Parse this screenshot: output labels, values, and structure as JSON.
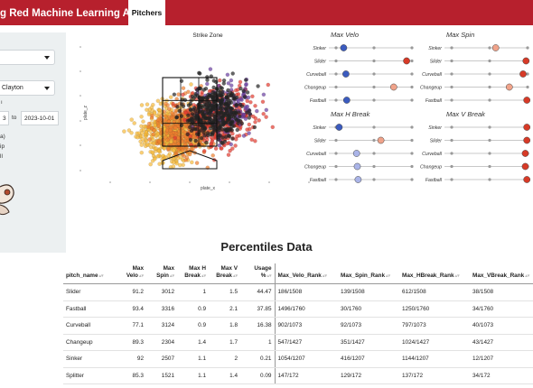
{
  "header": {
    "title": "g Red Machine Learning App",
    "tab": "Pitchers",
    "bar_color": "#b7202d"
  },
  "sidebar": {
    "pitcher_select_value": "Clayton",
    "date_start": "3",
    "date_to": "to",
    "date_end": "2023-10-01",
    "radio_items": [
      "a)",
      "ip",
      "ll"
    ],
    "chevron_icon": "chevron-down-icon",
    "logo_icon": "cartoon-mascot-icon"
  },
  "chart_data": [
    {
      "type": "scatter",
      "title": "Strike Zone",
      "xlabel": "plate_x",
      "ylabel": "plate_z",
      "note": "dense cloud of pitch locations colored by pitch type (orange/yellow, red, purple, black) with a rectangular strike-zone grid and home-plate outline",
      "colors": [
        "#f6b93b",
        "#f07f2d",
        "#e23a2f",
        "#6a3ea1",
        "#222222"
      ]
    },
    {
      "type": "percentile-dots",
      "panels": [
        {
          "title": "Max Velo",
          "rows": [
            {
              "label": "Sinker",
              "pct": 0.1,
              "color": "#3b5bbf"
            },
            {
              "label": "Slider",
              "pct": 0.93,
              "color": "#d73a27"
            },
            {
              "label": "Curveball",
              "pct": 0.13,
              "color": "#3b5bbf"
            },
            {
              "label": "Changeup",
              "pct": 0.76,
              "color": "#f0a38a"
            },
            {
              "label": "Fastball",
              "pct": 0.14,
              "color": "#3b5bbf"
            }
          ]
        },
        {
          "title": "Max Spin",
          "rows": [
            {
              "label": "Sinker",
              "pct": 0.58,
              "color": "#f0a38a"
            },
            {
              "label": "Slider",
              "pct": 0.98,
              "color": "#d73a27"
            },
            {
              "label": "Curveball",
              "pct": 0.94,
              "color": "#d73a27"
            },
            {
              "label": "Changeup",
              "pct": 0.76,
              "color": "#f0a38a"
            },
            {
              "label": "Fastball",
              "pct": 0.99,
              "color": "#d73a27"
            }
          ]
        },
        {
          "title": "Max H Break",
          "rows": [
            {
              "label": "Sinker",
              "pct": 0.04,
              "color": "#3b5bbf"
            },
            {
              "label": "Slider",
              "pct": 0.59,
              "color": "#f0a38a"
            },
            {
              "label": "Curveball",
              "pct": 0.27,
              "color": "#aab4e8"
            },
            {
              "label": "Changeup",
              "pct": 0.28,
              "color": "#aab4e8"
            },
            {
              "label": "Fastball",
              "pct": 0.29,
              "color": "#aab4e8"
            }
          ]
        },
        {
          "title": "Max V Break",
          "rows": [
            {
              "label": "Sinker",
              "pct": 0.99,
              "color": "#d73a27"
            },
            {
              "label": "Slider",
              "pct": 0.99,
              "color": "#d73a27"
            },
            {
              "label": "Curveball",
              "pct": 0.97,
              "color": "#d73a27"
            },
            {
              "label": "Changeup",
              "pct": 0.97,
              "color": "#d73a27"
            },
            {
              "label": "Fastball",
              "pct": 0.99,
              "color": "#d73a27"
            }
          ]
        }
      ]
    }
  ],
  "table": {
    "title": "Percentiles Data",
    "headers": [
      "pitch_name",
      "Max Velo",
      "Max Spin",
      "Max H Break",
      "Max V Break",
      "Usage %",
      "Max_Velo_Rank",
      "Max_Spin_Rank",
      "Max_HBreak_Rank",
      "Max_VBreak_Rank"
    ],
    "rows": [
      [
        "Slider",
        "91.2",
        "3012",
        "1",
        "1.5",
        "44.47",
        "186/1508",
        "139/1508",
        "612/1508",
        "38/1508"
      ],
      [
        "Fastball",
        "93.4",
        "3316",
        "0.9",
        "2.1",
        "37.85",
        "1496/1760",
        "30/1760",
        "1250/1760",
        "34/1760"
      ],
      [
        "Curveball",
        "77.1",
        "3124",
        "0.9",
        "1.8",
        "16.38",
        "902/1073",
        "92/1073",
        "797/1073",
        "40/1073"
      ],
      [
        "Changeup",
        "89.3",
        "2304",
        "1.4",
        "1.7",
        "1",
        "547/1427",
        "351/1427",
        "1024/1427",
        "43/1427"
      ],
      [
        "Sinker",
        "92",
        "2507",
        "1.1",
        "2",
        "0.21",
        "1054/1207",
        "416/1207",
        "1144/1207",
        "12/1207"
      ],
      [
        "Splitter",
        "85.3",
        "1521",
        "1.1",
        "1.4",
        "0.09",
        "147/172",
        "129/172",
        "137/172",
        "34/172"
      ]
    ]
  }
}
